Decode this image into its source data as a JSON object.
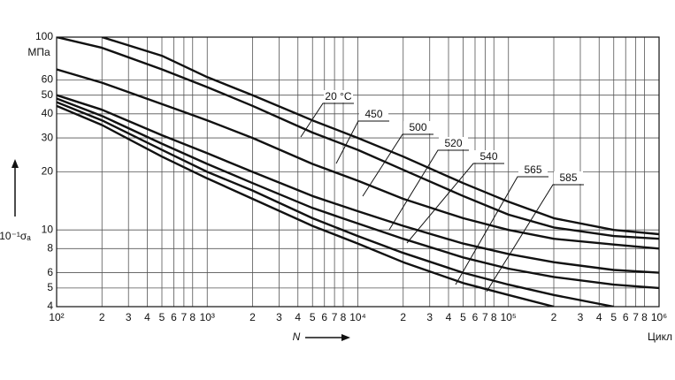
{
  "chart_data": {
    "type": "line",
    "xlog": true,
    "ylog": true,
    "grid": true,
    "x_label": "N",
    "x_unit": "Цикл",
    "y_label": "10⁻¹σₐ",
    "y_unit": "МПа",
    "xlim": [
      100,
      1000000
    ],
    "ylim": [
      4,
      100
    ],
    "xticks": [
      {
        "value": 100,
        "label": "10²"
      },
      {
        "value": 200,
        "label": "2"
      },
      {
        "value": 300,
        "label": "3"
      },
      {
        "value": 400,
        "label": "4"
      },
      {
        "value": 500,
        "label": "5"
      },
      {
        "value": 600,
        "label": "6"
      },
      {
        "value": 700,
        "label": "7"
      },
      {
        "value": 800,
        "label": "8"
      },
      {
        "value": 1000,
        "label": "10³"
      },
      {
        "value": 2000,
        "label": "2"
      },
      {
        "value": 3000,
        "label": "3"
      },
      {
        "value": 4000,
        "label": "4"
      },
      {
        "value": 5000,
        "label": "5"
      },
      {
        "value": 6000,
        "label": "6"
      },
      {
        "value": 7000,
        "label": "7"
      },
      {
        "value": 8000,
        "label": "8"
      },
      {
        "value": 10000,
        "label": "10⁴"
      },
      {
        "value": 20000,
        "label": "2"
      },
      {
        "value": 30000,
        "label": "3"
      },
      {
        "value": 40000,
        "label": "4"
      },
      {
        "value": 50000,
        "label": "5"
      },
      {
        "value": 60000,
        "label": "6"
      },
      {
        "value": 70000,
        "label": "7"
      },
      {
        "value": 80000,
        "label": "8"
      },
      {
        "value": 100000,
        "label": "10⁵"
      },
      {
        "value": 200000,
        "label": "2"
      },
      {
        "value": 300000,
        "label": "3"
      },
      {
        "value": 400000,
        "label": "4"
      },
      {
        "value": 500000,
        "label": "5"
      },
      {
        "value": 600000,
        "label": "6"
      },
      {
        "value": 700000,
        "label": "7"
      },
      {
        "value": 800000,
        "label": "8"
      },
      {
        "value": 1000000,
        "label": "10⁶"
      }
    ],
    "yticks": [
      4,
      5,
      6,
      8,
      10,
      20,
      30,
      40,
      50,
      60,
      100
    ],
    "x": [
      100,
      200,
      500,
      1000,
      2000,
      5000,
      10000,
      20000,
      50000,
      100000,
      200000,
      500000,
      1000000
    ],
    "series": [
      {
        "name": "20 °C",
        "color": "#111111",
        "values": [
          null,
          100,
          80,
          62,
          50,
          37,
          30,
          24,
          17.5,
          14,
          11.5,
          10,
          9.5
        ]
      },
      {
        "name": "450",
        "color": "#111111",
        "values": [
          100,
          88,
          68,
          55,
          44,
          32,
          26,
          20.5,
          15,
          12,
          10.3,
          9.3,
          9.0
        ]
      },
      {
        "name": "500",
        "color": "#111111",
        "values": [
          68,
          58,
          45,
          37,
          30,
          22,
          18,
          14.5,
          11.5,
          10,
          9,
          8.4,
          8.0
        ]
      },
      {
        "name": "520",
        "color": "#111111",
        "values": [
          50,
          42,
          31,
          25,
          20,
          15,
          12.5,
          10.5,
          8.5,
          7.5,
          6.8,
          6.2,
          6.0
        ]
      },
      {
        "name": "540",
        "color": "#111111",
        "values": [
          48,
          39,
          28,
          22,
          17.5,
          13,
          10.8,
          9,
          7.2,
          6.3,
          5.7,
          5.2,
          5.0
        ]
      },
      {
        "name": "565",
        "color": "#111111",
        "values": [
          46,
          37,
          26,
          20,
          16,
          11.5,
          9.3,
          7.6,
          6,
          5.2,
          4.6,
          4,
          null
        ]
      },
      {
        "name": "585",
        "color": "#111111",
        "values": [
          44,
          35,
          24,
          18.5,
          14.5,
          10.5,
          8.5,
          6.8,
          5.3,
          4.6,
          4,
          null,
          null
        ]
      }
    ]
  }
}
